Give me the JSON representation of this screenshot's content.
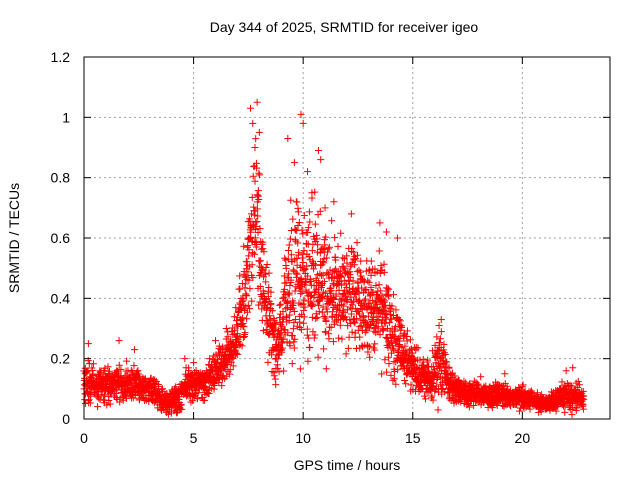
{
  "chart_data": {
    "type": "scatter",
    "title": "Day 344 of 2025, SRMTID for receiver igeo",
    "xlabel": "GPS time / hours",
    "ylabel": "SRMTID / TECUs",
    "xlim": [
      0,
      24
    ],
    "ylim": [
      0,
      1.2
    ],
    "xticks": [
      "0",
      "5",
      "10",
      "15",
      "20"
    ],
    "yticks": [
      "0",
      "0.2",
      "0.4",
      "0.6",
      "0.8",
      "1",
      "1.2"
    ],
    "grid": true,
    "marker": "+",
    "marker_color": "#ff0000",
    "grid_color": "#a0a0a0",
    "x_end": 22.8,
    "profile": [
      {
        "x": 0.0,
        "base": 0.12,
        "spread": 0.05
      },
      {
        "x": 1.0,
        "base": 0.11,
        "spread": 0.05
      },
      {
        "x": 2.0,
        "base": 0.12,
        "spread": 0.05
      },
      {
        "x": 3.0,
        "base": 0.1,
        "spread": 0.04
      },
      {
        "x": 3.6,
        "base": 0.06,
        "spread": 0.03
      },
      {
        "x": 4.3,
        "base": 0.06,
        "spread": 0.03
      },
      {
        "x": 4.6,
        "base": 0.11,
        "spread": 0.04
      },
      {
        "x": 5.5,
        "base": 0.12,
        "spread": 0.04
      },
      {
        "x": 6.2,
        "base": 0.17,
        "spread": 0.05
      },
      {
        "x": 6.8,
        "base": 0.24,
        "spread": 0.07
      },
      {
        "x": 7.3,
        "base": 0.4,
        "spread": 0.12
      },
      {
        "x": 7.8,
        "base": 0.7,
        "spread": 0.25
      },
      {
        "x": 8.3,
        "base": 0.4,
        "spread": 0.15
      },
      {
        "x": 8.8,
        "base": 0.22,
        "spread": 0.08
      },
      {
        "x": 9.3,
        "base": 0.4,
        "spread": 0.2
      },
      {
        "x": 9.8,
        "base": 0.5,
        "spread": 0.25
      },
      {
        "x": 10.5,
        "base": 0.45,
        "spread": 0.18
      },
      {
        "x": 11.5,
        "base": 0.42,
        "spread": 0.15
      },
      {
        "x": 12.5,
        "base": 0.4,
        "spread": 0.15
      },
      {
        "x": 13.5,
        "base": 0.38,
        "spread": 0.15
      },
      {
        "x": 14.2,
        "base": 0.25,
        "spread": 0.1
      },
      {
        "x": 15.0,
        "base": 0.18,
        "spread": 0.06
      },
      {
        "x": 15.8,
        "base": 0.12,
        "spread": 0.05
      },
      {
        "x": 16.3,
        "base": 0.2,
        "spread": 0.1
      },
      {
        "x": 16.8,
        "base": 0.1,
        "spread": 0.04
      },
      {
        "x": 18.0,
        "base": 0.08,
        "spread": 0.03
      },
      {
        "x": 19.0,
        "base": 0.08,
        "spread": 0.03
      },
      {
        "x": 20.0,
        "base": 0.07,
        "spread": 0.03
      },
      {
        "x": 21.0,
        "base": 0.05,
        "spread": 0.02
      },
      {
        "x": 22.0,
        "base": 0.08,
        "spread": 0.04
      },
      {
        "x": 22.8,
        "base": 0.07,
        "spread": 0.03
      }
    ],
    "extremes": [
      [
        7.6,
        1.03
      ],
      [
        7.9,
        1.05
      ],
      [
        7.7,
        0.98
      ],
      [
        8.0,
        0.95
      ],
      [
        7.8,
        0.9
      ],
      [
        9.3,
        0.93
      ],
      [
        9.6,
        0.85
      ],
      [
        9.9,
        1.01
      ],
      [
        10.0,
        0.98
      ],
      [
        10.2,
        0.82
      ],
      [
        10.7,
        0.89
      ],
      [
        10.8,
        0.86
      ],
      [
        10.4,
        0.75
      ],
      [
        11.0,
        0.7
      ],
      [
        11.4,
        0.72
      ],
      [
        12.2,
        0.68
      ],
      [
        13.5,
        0.65
      ],
      [
        13.8,
        0.62
      ],
      [
        14.3,
        0.6
      ],
      [
        16.3,
        0.33
      ],
      [
        16.2,
        0.31
      ],
      [
        0.2,
        0.25
      ],
      [
        1.6,
        0.26
      ],
      [
        2.3,
        0.23
      ],
      [
        6.0,
        0.26
      ],
      [
        4.6,
        0.2
      ],
      [
        19.2,
        0.15
      ],
      [
        22.3,
        0.17
      ],
      [
        22.0,
        0.16
      ],
      [
        18.1,
        0.14
      ]
    ]
  }
}
